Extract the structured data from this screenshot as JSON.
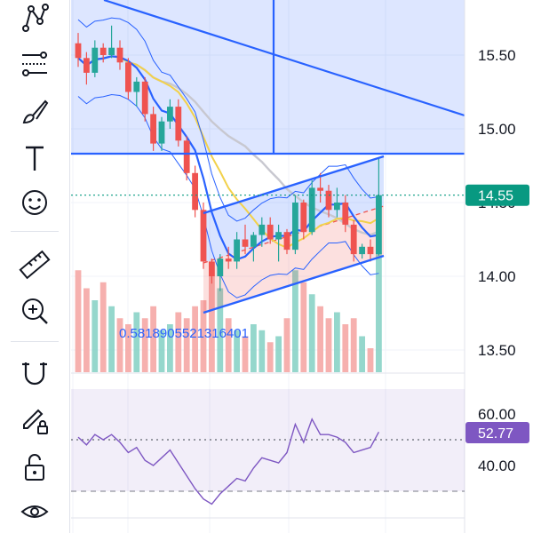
{
  "toolbar": {
    "items": [
      {
        "name": "pattern-tool-icon",
        "label": "Patterns"
      },
      {
        "name": "fib-tool-icon",
        "label": "Fib / Gann"
      },
      {
        "name": "brush-tool-icon",
        "label": "Brush"
      },
      {
        "name": "text-tool-icon",
        "label": "Text"
      },
      {
        "name": "emoji-tool-icon",
        "label": "Icons"
      },
      {
        "name": "ruler-tool-icon",
        "label": "Measure"
      },
      {
        "name": "zoom-in-icon",
        "label": "Zoom In"
      },
      {
        "name": "magnet-icon",
        "label": "Magnet"
      },
      {
        "name": "lock-pencil-icon",
        "label": "Lock drawings"
      },
      {
        "name": "unlock-icon",
        "label": "Unlock"
      },
      {
        "name": "eye-icon",
        "label": "Hide"
      }
    ]
  },
  "price_axis": {
    "ticks": [
      "15.50",
      "15.00",
      "14.50",
      "14.00",
      "13.50"
    ],
    "last_price": "14.55",
    "last_price_color": "#089981"
  },
  "rsi_axis": {
    "ticks": [
      "60.00",
      "40.00"
    ],
    "value": "52.77",
    "value_color": "#7e57c2"
  },
  "annotation": {
    "text": "0.5818905521316401"
  },
  "colors": {
    "up": "#26a69a",
    "down": "#ef5350",
    "drawing": "#2962ff",
    "rsi": "#7e57c2"
  },
  "chart_data": {
    "type": "candlestick",
    "ohlc": [
      {
        "o": 15.58,
        "h": 15.65,
        "l": 15.42,
        "c": 15.48
      },
      {
        "o": 15.48,
        "h": 15.52,
        "l": 15.3,
        "c": 15.38
      },
      {
        "o": 15.38,
        "h": 15.6,
        "l": 15.35,
        "c": 15.55
      },
      {
        "o": 15.55,
        "h": 15.58,
        "l": 15.45,
        "c": 15.5
      },
      {
        "o": 15.5,
        "h": 15.7,
        "l": 15.48,
        "c": 15.55
      },
      {
        "o": 15.55,
        "h": 15.6,
        "l": 15.4,
        "c": 15.45
      },
      {
        "o": 15.45,
        "h": 15.48,
        "l": 15.2,
        "c": 15.25
      },
      {
        "o": 15.25,
        "h": 15.35,
        "l": 15.15,
        "c": 15.32
      },
      {
        "o": 15.32,
        "h": 15.35,
        "l": 15.05,
        "c": 15.1
      },
      {
        "o": 15.1,
        "h": 15.15,
        "l": 14.85,
        "c": 14.9
      },
      {
        "o": 14.9,
        "h": 15.08,
        "l": 14.85,
        "c": 15.05
      },
      {
        "o": 15.05,
        "h": 15.2,
        "l": 15.0,
        "c": 15.15
      },
      {
        "o": 15.15,
        "h": 15.2,
        "l": 14.88,
        "c": 14.92
      },
      {
        "o": 14.92,
        "h": 14.95,
        "l": 14.65,
        "c": 14.7
      },
      {
        "o": 14.7,
        "h": 14.75,
        "l": 14.4,
        "c": 14.45
      },
      {
        "o": 14.45,
        "h": 14.5,
        "l": 14.05,
        "c": 14.1
      },
      {
        "o": 14.1,
        "h": 14.12,
        "l": 13.95,
        "c": 14.0
      },
      {
        "o": 14.0,
        "h": 14.15,
        "l": 13.9,
        "c": 14.12
      },
      {
        "o": 14.12,
        "h": 14.2,
        "l": 14.05,
        "c": 14.1
      },
      {
        "o": 14.1,
        "h": 14.3,
        "l": 14.05,
        "c": 14.25
      },
      {
        "o": 14.25,
        "h": 14.35,
        "l": 14.15,
        "c": 14.2
      },
      {
        "o": 14.2,
        "h": 14.3,
        "l": 14.1,
        "c": 14.28
      },
      {
        "o": 14.28,
        "h": 14.4,
        "l": 14.2,
        "c": 14.35
      },
      {
        "o": 14.35,
        "h": 14.4,
        "l": 14.22,
        "c": 14.25
      },
      {
        "o": 14.25,
        "h": 14.35,
        "l": 14.1,
        "c": 14.3
      },
      {
        "o": 14.3,
        "h": 14.32,
        "l": 14.15,
        "c": 14.18
      },
      {
        "o": 14.18,
        "h": 14.55,
        "l": 14.15,
        "c": 14.5
      },
      {
        "o": 14.5,
        "h": 14.52,
        "l": 14.25,
        "c": 14.3
      },
      {
        "o": 14.3,
        "h": 14.65,
        "l": 14.28,
        "c": 14.6
      },
      {
        "o": 14.6,
        "h": 14.7,
        "l": 14.5,
        "c": 14.58
      },
      {
        "o": 14.58,
        "h": 14.62,
        "l": 14.4,
        "c": 14.45
      },
      {
        "o": 14.45,
        "h": 14.6,
        "l": 14.4,
        "c": 14.5
      },
      {
        "o": 14.5,
        "h": 14.55,
        "l": 14.3,
        "c": 14.35
      },
      {
        "o": 14.35,
        "h": 14.38,
        "l": 14.1,
        "c": 14.15
      },
      {
        "o": 14.15,
        "h": 14.22,
        "l": 14.12,
        "c": 14.2
      },
      {
        "o": 14.2,
        "h": 14.25,
        "l": 14.1,
        "c": 14.15
      },
      {
        "o": 14.15,
        "h": 14.8,
        "l": 14.14,
        "c": 14.55
      }
    ],
    "volume": [
      0.85,
      0.7,
      0.6,
      0.75,
      0.55,
      0.45,
      0.4,
      0.5,
      0.45,
      0.55,
      0.35,
      0.4,
      0.5,
      0.45,
      0.55,
      0.6,
      0.8,
      0.7,
      0.45,
      0.35,
      0.3,
      0.4,
      0.35,
      0.25,
      0.3,
      0.45,
      0.85,
      0.75,
      0.65,
      0.55,
      0.45,
      0.5,
      0.4,
      0.45,
      0.3,
      0.2,
      1.0
    ],
    "rsi": [
      51,
      48,
      52,
      50,
      52,
      49,
      45,
      47,
      42,
      40,
      43,
      46,
      41,
      36,
      31,
      27,
      25,
      29,
      32,
      35,
      34,
      39,
      43,
      42,
      41,
      45,
      56,
      49,
      58,
      52,
      52,
      51,
      49,
      45,
      46,
      47,
      53
    ],
    "price_ylim": [
      13.4,
      15.75
    ],
    "rsi_ylim": [
      20,
      70
    ],
    "rsi_bands": [
      30,
      70
    ],
    "rsi_midline": 50
  }
}
